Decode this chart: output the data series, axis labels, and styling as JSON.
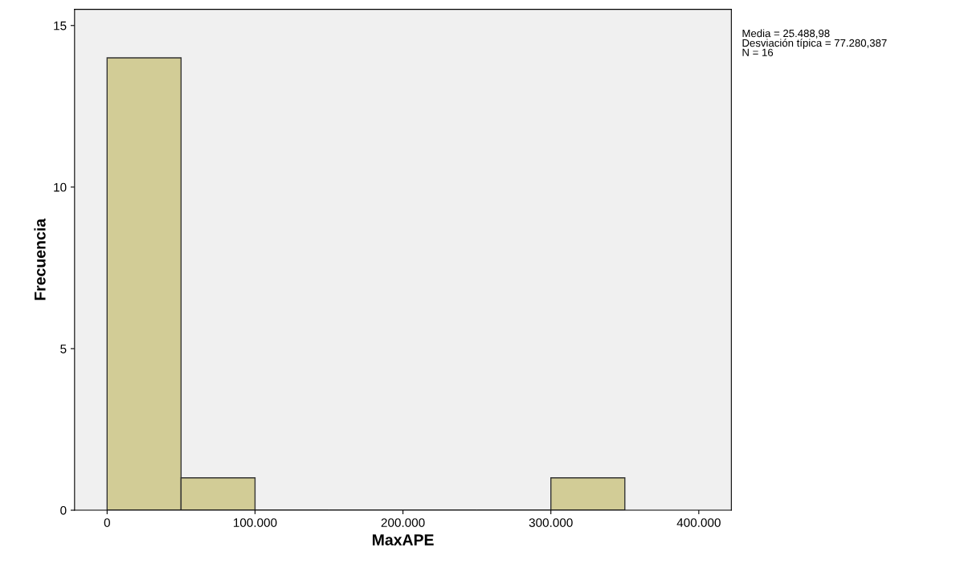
{
  "chart_data": {
    "type": "histogram",
    "xlabel": "MaxAPE",
    "ylabel": "Frecuencia",
    "bins": [
      0,
      50000,
      100000,
      150000,
      200000,
      250000,
      300000,
      350000
    ],
    "values": [
      14,
      1,
      0,
      0,
      0,
      0,
      1
    ],
    "color": "#d2cc96",
    "xlim": [
      -22000,
      422000
    ],
    "xticks": [
      {
        "value": 0,
        "label": "0"
      },
      {
        "value": 100000,
        "label": "100.000"
      },
      {
        "value": 200000,
        "label": "200.000"
      },
      {
        "value": 300000,
        "label": "300.000"
      },
      {
        "value": 400000,
        "label": "400.000"
      }
    ],
    "ylim": [
      0,
      15.5
    ],
    "yticks": [
      0,
      5,
      10,
      15
    ],
    "grid": false,
    "annotations": [
      "Media = 25.488,98\nDesviación típica = 77.280,387\nN = 16"
    ]
  }
}
